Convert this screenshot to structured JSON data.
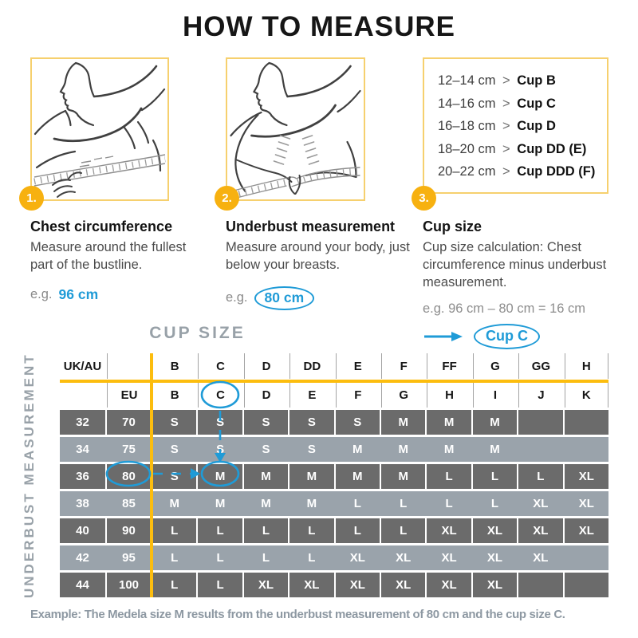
{
  "title": "HOW TO MEASURE",
  "steps": [
    {
      "number": "1.",
      "heading": "Chest circumference",
      "body": "Measure around the fullest part of the bustline.",
      "example_prefix": "e.g.",
      "example_value": "96 cm"
    },
    {
      "number": "2.",
      "heading": "Underbust measurement",
      "body": "Measure around your body, just below your breasts.",
      "example_prefix": "e.g.",
      "example_value": "80 cm"
    },
    {
      "number": "3.",
      "heading": "Cup size",
      "body": "Cup size calculation: Chest circumference minus underbust measurement.",
      "example_formula": "e.g. 96 cm – 80 cm = 16 cm",
      "result_label": "Cup C"
    }
  ],
  "cup_reference": {
    "separator": ">",
    "rows": [
      {
        "range": "12–14 cm",
        "cup": "Cup B"
      },
      {
        "range": "14–16 cm",
        "cup": "Cup C"
      },
      {
        "range": "16–18 cm",
        "cup": "Cup D"
      },
      {
        "range": "18–20 cm",
        "cup": "Cup DD (E)"
      },
      {
        "range": "20–22 cm",
        "cup": "Cup DDD (F)"
      }
    ]
  },
  "size_table": {
    "title": "CUP SIZE",
    "side_label": "UNDERBUST MEASUREMENT",
    "header_row_1": [
      "UK/AU",
      "",
      "B",
      "C",
      "D",
      "DD",
      "E",
      "F",
      "FF",
      "G",
      "GG",
      "H"
    ],
    "header_row_2": [
      "",
      "EU",
      "B",
      "C",
      "D",
      "E",
      "F",
      "G",
      "H",
      "I",
      "J",
      "K"
    ],
    "rows": [
      {
        "ukau": "32",
        "eu": "70",
        "sizes": [
          "S",
          "S",
          "S",
          "S",
          "S",
          "M",
          "M",
          "M",
          "",
          ""
        ]
      },
      {
        "ukau": "34",
        "eu": "75",
        "sizes": [
          "S",
          "S",
          "S",
          "S",
          "M",
          "M",
          "M",
          "M",
          "",
          ""
        ]
      },
      {
        "ukau": "36",
        "eu": "80",
        "sizes": [
          "S",
          "M",
          "M",
          "M",
          "M",
          "M",
          "L",
          "L",
          "L",
          "XL"
        ]
      },
      {
        "ukau": "38",
        "eu": "85",
        "sizes": [
          "M",
          "M",
          "M",
          "M",
          "L",
          "L",
          "L",
          "L",
          "XL",
          "XL"
        ]
      },
      {
        "ukau": "40",
        "eu": "90",
        "sizes": [
          "L",
          "L",
          "L",
          "L",
          "L",
          "L",
          "XL",
          "XL",
          "XL",
          "XL"
        ]
      },
      {
        "ukau": "42",
        "eu": "95",
        "sizes": [
          "L",
          "L",
          "L",
          "L",
          "XL",
          "XL",
          "XL",
          "XL",
          "XL",
          ""
        ]
      },
      {
        "ukau": "44",
        "eu": "100",
        "sizes": [
          "L",
          "L",
          "XL",
          "XL",
          "XL",
          "XL",
          "XL",
          "XL",
          "",
          ""
        ]
      }
    ],
    "annotations": {
      "circled_cup_eu": "C",
      "circled_underbust_eu": "80",
      "circled_result": "M"
    }
  },
  "footer_example": "Example: The Medela size M results from the underbust measurement of 80 cm and the cup size C.",
  "colors": {
    "accent_yellow": "#f7b110",
    "accent_blue": "#1f9bd7",
    "dark_row": "#6b6b6b",
    "light_row": "#9aa3ab",
    "muted_gray": "#98a1a8"
  }
}
